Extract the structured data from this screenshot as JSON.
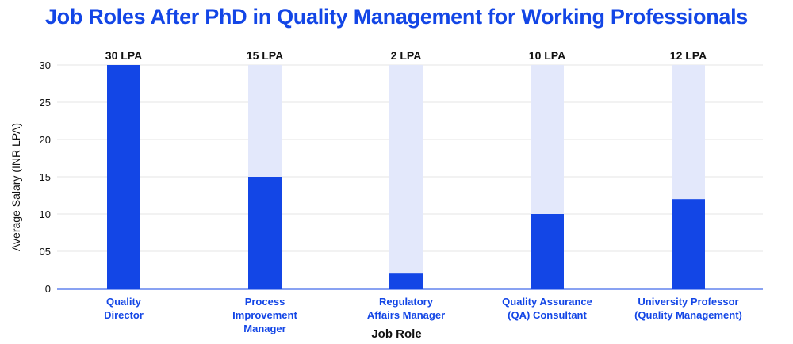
{
  "colors": {
    "title": "#1346e6",
    "bar": "#1346e6",
    "track": "#e3e8fb",
    "axis": "#1346e6",
    "grid": "#e6e6e6",
    "category_label": "#1346e6"
  },
  "chart_data": {
    "type": "bar",
    "title": "Job Roles After PhD in Quality Management for Working Professionals",
    "xlabel": "Job Role",
    "ylabel": "Average Salary  (INR LPA)",
    "ylim": [
      0,
      30
    ],
    "yticks": [
      "0",
      "05",
      "10",
      "15",
      "20",
      "25",
      "30"
    ],
    "grid": true,
    "categories": [
      [
        "Quality",
        "Director"
      ],
      [
        "Process",
        "Improvement",
        "Manager"
      ],
      [
        "Regulatory",
        "Affairs Manager"
      ],
      [
        "Quality Assurance",
        "(QA) Consultant"
      ],
      [
        "University Professor",
        "(Quality Management)"
      ]
    ],
    "values": [
      30,
      15,
      2,
      10,
      12
    ],
    "data_labels": [
      "30 LPA",
      "15 LPA",
      "2 LPA",
      "10 LPA",
      "12 LPA"
    ]
  }
}
